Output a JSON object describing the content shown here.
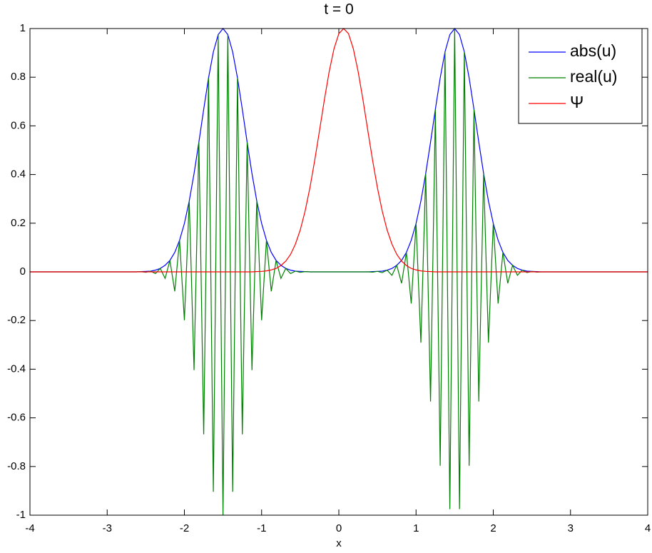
{
  "chart_data": {
    "type": "line",
    "title": "t = 0",
    "x_label": "x",
    "x": [
      -4,
      -2.75,
      -2.6875,
      -2.625,
      -2.5625,
      -2.5,
      -2.4375,
      -2.375,
      -2.3125,
      -2.25,
      -2.1875,
      -2.125,
      -2.0625,
      -2,
      -1.9375,
      -1.875,
      -1.8125,
      -1.75,
      -1.6875,
      -1.625,
      -1.5625,
      -1.5,
      -1.4375,
      -1.375,
      -1.3125,
      -1.25,
      -1.1875,
      -1.125,
      -1.0625,
      -1,
      -0.9375,
      -0.875,
      -0.8125,
      -0.75,
      -0.6875,
      -0.625,
      -0.5625,
      -0.5,
      -0.4375,
      -0.375,
      -0.3125,
      -0.25,
      -0.1875,
      -0.125,
      -0.0625,
      0,
      0.0625,
      0.125,
      0.1875,
      0.25,
      0.3125,
      0.375,
      0.4375,
      0.5,
      0.5625,
      0.625,
      0.6875,
      0.75,
      0.8125,
      0.875,
      0.9375,
      1,
      1.0625,
      1.125,
      1.1875,
      1.25,
      1.3125,
      1.375,
      1.4375,
      1.5,
      1.5625,
      1.625,
      1.6875,
      1.75,
      1.8125,
      1.875,
      1.9375,
      2,
      2.0625,
      2.125,
      2.1875,
      2.25,
      2.3125,
      2.375,
      2.4375,
      2.5,
      2.5625,
      2.625,
      2.6875,
      2.75,
      4
    ],
    "series": [
      {
        "name": "abs(u)",
        "color": "#0000ff",
        "values": [
          0,
          0,
          0,
          0,
          0.001,
          0.002,
          0.003,
          0.007,
          0.014,
          0.027,
          0.047,
          0.08,
          0.13,
          0.199,
          0.291,
          0.404,
          0.533,
          0.668,
          0.797,
          0.904,
          0.975,
          1,
          0.975,
          0.904,
          0.797,
          0.668,
          0.533,
          0.404,
          0.291,
          0.199,
          0.13,
          0.08,
          0.047,
          0.027,
          0.014,
          0.007,
          0.003,
          0.002,
          0.001,
          0,
          0,
          0,
          0,
          0,
          0,
          0,
          0,
          0,
          0,
          0,
          0,
          0,
          0.001,
          0.002,
          0.003,
          0.007,
          0.014,
          0.027,
          0.047,
          0.08,
          0.13,
          0.199,
          0.291,
          0.404,
          0.533,
          0.668,
          0.797,
          0.904,
          0.975,
          1,
          0.975,
          0.904,
          0.797,
          0.668,
          0.533,
          0.404,
          0.291,
          0.199,
          0.13,
          0.08,
          0.047,
          0.027,
          0.014,
          0.007,
          0.003,
          0.002,
          0.001,
          0,
          0,
          0,
          0
        ]
      },
      {
        "name": "real(u)",
        "color": "#008000",
        "values": [
          0,
          0,
          0,
          0,
          0.001,
          -0.002,
          0.003,
          -0.007,
          0.014,
          -0.027,
          0.047,
          -0.08,
          0.13,
          -0.199,
          0.291,
          -0.404,
          0.533,
          -0.668,
          0.797,
          -0.904,
          0.975,
          -1,
          0.975,
          -0.904,
          0.797,
          -0.668,
          0.533,
          -0.404,
          0.291,
          -0.199,
          0.13,
          -0.08,
          0.047,
          -0.027,
          0.014,
          -0.007,
          0.003,
          -0.002,
          0.001,
          0,
          0,
          0,
          0,
          0,
          0,
          0,
          0,
          0,
          0,
          0,
          0,
          0,
          -0.001,
          0.002,
          -0.003,
          0.007,
          -0.014,
          0.027,
          -0.047,
          0.08,
          -0.13,
          0.199,
          -0.291,
          0.404,
          -0.533,
          0.668,
          -0.797,
          0.904,
          -0.975,
          1,
          -0.975,
          0.904,
          -0.797,
          0.668,
          -0.533,
          0.404,
          -0.291,
          0.199,
          -0.13,
          0.08,
          -0.047,
          0.027,
          -0.014,
          0.007,
          -0.003,
          0.002,
          -0.001,
          0,
          0,
          0,
          0
        ]
      },
      {
        "name": "Ψ",
        "color": "#ff0000",
        "values": [
          0,
          0,
          0,
          0,
          0,
          0,
          0,
          0,
          0,
          0,
          0,
          0,
          0,
          0,
          0,
          0,
          0,
          0,
          0,
          0,
          0,
          0,
          0,
          0,
          0,
          0,
          0,
          0,
          0.001,
          0.002,
          0.004,
          0.008,
          0.014,
          0.026,
          0.044,
          0.072,
          0.114,
          0.172,
          0.249,
          0.345,
          0.458,
          0.581,
          0.707,
          0.823,
          0.917,
          0.979,
          1,
          0.979,
          0.917,
          0.823,
          0.707,
          0.581,
          0.458,
          0.345,
          0.249,
          0.172,
          0.114,
          0.072,
          0.044,
          0.026,
          0.014,
          0.008,
          0.004,
          0.002,
          0.001,
          0,
          0,
          0,
          0,
          0,
          0,
          0,
          0,
          0,
          0,
          0,
          0,
          0,
          0,
          0,
          0,
          0,
          0,
          0,
          0,
          0,
          0,
          0,
          0,
          0,
          0
        ]
      }
    ],
    "xlim": [
      -4,
      4
    ],
    "xticks": [
      -4,
      -3,
      -2,
      -1,
      0,
      1,
      2,
      3,
      4
    ],
    "ylim": [
      -1,
      1
    ],
    "yticks": [
      -1,
      -0.8,
      -0.6,
      -0.4,
      -0.2,
      0,
      0.2,
      0.4,
      0.6,
      0.8,
      1
    ],
    "grid": false,
    "legend": "upper right"
  }
}
